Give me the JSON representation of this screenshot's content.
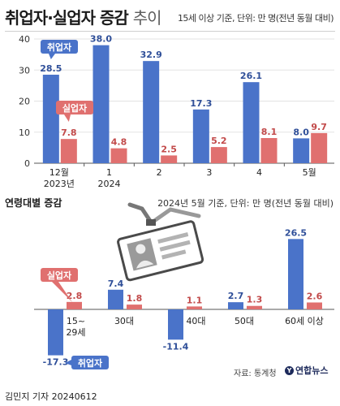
{
  "title": {
    "main": "취업자·실업자 증감",
    "sub": "추이"
  },
  "note_top": "15세 이상 기준, 단위: 만 명(전년 동월 대비)",
  "section2_title": "연령대별 증감",
  "note_bottom": "2024년 5월 기준, 단위: 만 명(전년 동월 대비)",
  "source": "자료: 통계청",
  "logo_text": "연합뉴스",
  "byline": "김민지 기자  20240612",
  "colors": {
    "employed": "#4a73c9",
    "unemployed": "#e0706f"
  },
  "chart_data": [
    {
      "type": "bar",
      "categories": [
        "12월",
        "1",
        "2",
        "3",
        "4",
        "5월"
      ],
      "category_sublabels": [
        "2023년",
        "2024",
        "",
        "",
        "",
        ""
      ],
      "series": [
        {
          "name": "취업자",
          "values": [
            28.5,
            38.0,
            32.9,
            17.3,
            26.1,
            8.0
          ]
        },
        {
          "name": "실업자",
          "values": [
            7.8,
            4.8,
            2.5,
            5.2,
            8.1,
            9.7
          ]
        }
      ],
      "value_labels": {
        "employed": [
          "28.5",
          "38.0",
          "32.9",
          "17.3",
          "26.1",
          "8.0"
        ],
        "unemployed": [
          "7.8",
          "4.8",
          "2.5",
          "5.2",
          "8.1",
          "9.7"
        ]
      },
      "yticks": [
        "0",
        "10",
        "20",
        "30",
        "40"
      ],
      "ylim": [
        0,
        40
      ],
      "grid": true,
      "legend": "callouts"
    },
    {
      "type": "bar",
      "categories": [
        "15~\n29세",
        "30대",
        "40대",
        "50대",
        "60세 이상"
      ],
      "category_lines": [
        [
          "15~",
          "29세"
        ],
        [
          "30대"
        ],
        [
          "40대"
        ],
        [
          "50대"
        ],
        [
          "60세 이상"
        ]
      ],
      "series": [
        {
          "name": "취업자",
          "values": [
            -17.3,
            7.4,
            -11.4,
            2.7,
            26.5
          ]
        },
        {
          "name": "실업자",
          "values": [
            2.8,
            1.8,
            1.1,
            1.3,
            2.6
          ]
        }
      ],
      "value_labels": {
        "employed": [
          "-17.3",
          "7.4",
          "-11.4",
          "2.7",
          "26.5"
        ],
        "unemployed": [
          "2.8",
          "1.8",
          "1.1",
          "1.3",
          "2.6"
        ]
      },
      "ylim": [
        -17.3,
        26.5
      ],
      "grid": false,
      "legend": "callouts"
    }
  ]
}
